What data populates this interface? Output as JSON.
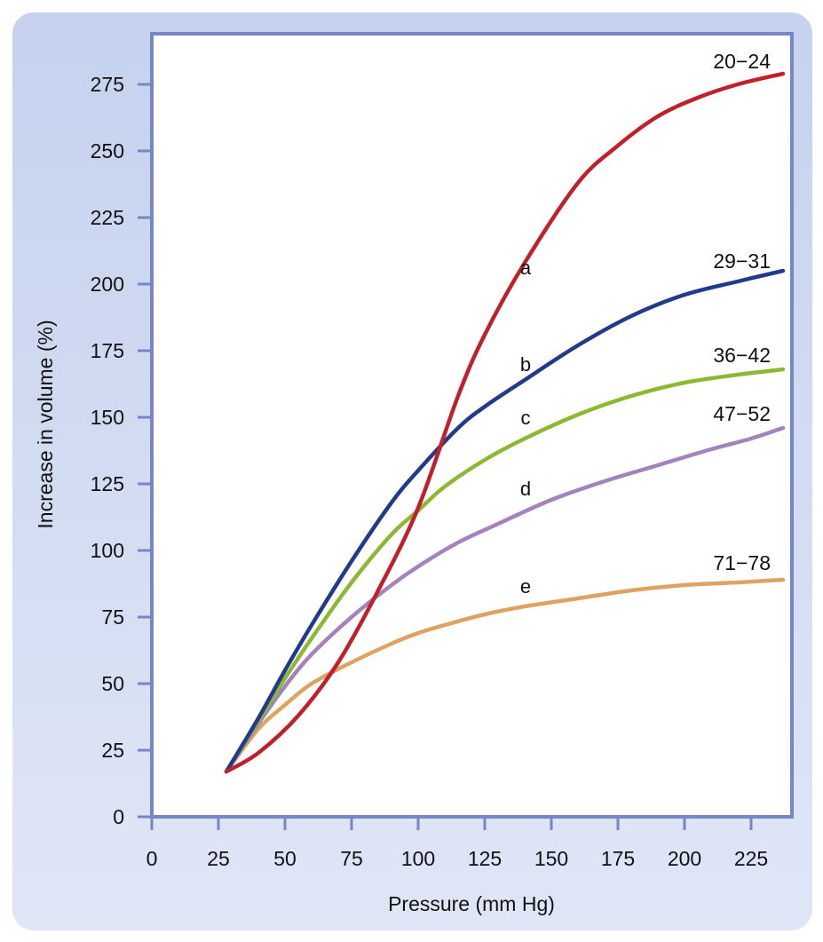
{
  "chart_data": {
    "type": "line",
    "title": "",
    "xlabel": "Pressure (mm Hg)",
    "ylabel": "Increase in volume (%)",
    "xlim": [
      0,
      240
    ],
    "ylim": [
      0,
      285
    ],
    "x_ticks": [
      0,
      25,
      50,
      75,
      100,
      125,
      150,
      175,
      200,
      225
    ],
    "y_ticks": [
      0,
      25,
      50,
      75,
      100,
      125,
      150,
      175,
      200,
      225,
      250,
      275
    ],
    "grid": false,
    "legend": "none",
    "series": [
      {
        "name": "a",
        "end_label": "20−24",
        "color": "#c0202a",
        "x": [
          28,
          40,
          55,
          70,
          85,
          100,
          115,
          125,
          140,
          160,
          175,
          190,
          205,
          220,
          237
        ],
        "y": [
          17,
          24,
          38,
          58,
          85,
          116,
          158,
          181,
          208,
          238,
          252,
          263,
          270,
          275,
          279
        ]
      },
      {
        "name": "b",
        "end_label": "29−31",
        "color": "#23398a",
        "x": [
          28,
          40,
          50,
          60,
          75,
          90,
          100,
          115,
          125,
          140,
          160,
          180,
          200,
          220,
          237
        ],
        "y": [
          17,
          37,
          55,
          72,
          96,
          118,
          130,
          146,
          154,
          164,
          177,
          188,
          196,
          201,
          205
        ]
      },
      {
        "name": "c",
        "end_label": "36−42",
        "color": "#8db832",
        "x": [
          28,
          40,
          50,
          60,
          75,
          90,
          100,
          110,
          125,
          140,
          160,
          180,
          200,
          220,
          237
        ],
        "y": [
          17,
          36,
          52,
          67,
          88,
          106,
          115,
          124,
          134,
          142,
          151,
          158,
          163,
          166,
          168
        ]
      },
      {
        "name": "d",
        "end_label": "47−52",
        "color": "#a483bd",
        "x": [
          28,
          40,
          50,
          60,
          75,
          90,
          100,
          115,
          130,
          150,
          170,
          190,
          210,
          225,
          237
        ],
        "y": [
          17,
          35,
          49,
          61,
          75,
          87,
          94,
          103,
          110,
          119,
          126,
          132,
          138,
          142,
          146
        ]
      },
      {
        "name": "e",
        "end_label": "71−78",
        "color": "#dea363",
        "x": [
          28,
          40,
          50,
          60,
          75,
          90,
          100,
          110,
          125,
          140,
          160,
          180,
          200,
          220,
          237
        ],
        "y": [
          17,
          33,
          42,
          50,
          58,
          65,
          69,
          72,
          76,
          79,
          82,
          85,
          87,
          88,
          89
        ]
      }
    ]
  }
}
